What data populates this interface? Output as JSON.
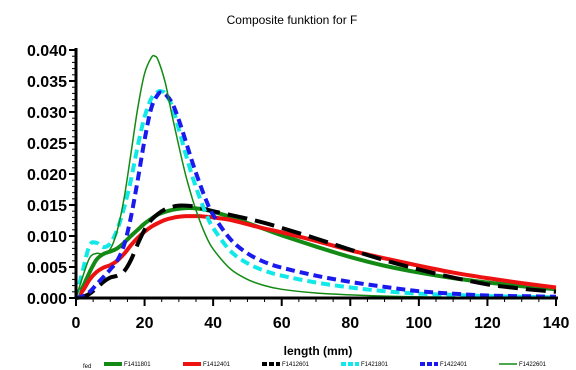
{
  "chart_data": {
    "type": "line",
    "title": "Composite funktion for F",
    "xlabel": "length (mm)",
    "ylabel": "",
    "xlim": [
      0,
      140
    ],
    "ylim": [
      0,
      0.04
    ],
    "x_ticks": [
      0,
      20,
      40,
      60,
      80,
      100,
      120,
      140
    ],
    "x_tick_labels": [
      "0",
      "20",
      "40",
      "60",
      "80",
      "100",
      "120",
      "140"
    ],
    "y_ticks": [
      0,
      0.005,
      0.01,
      0.015,
      0.02,
      0.025,
      0.03,
      0.035,
      0.04
    ],
    "y_tick_labels": [
      "0.000",
      "0.005",
      "0.010",
      "0.015",
      "0.020",
      "0.025",
      "0.030",
      "0.035",
      "0.040"
    ],
    "grid": false,
    "legend_position": "bottom",
    "legend_title": "fed",
    "series": [
      {
        "name": "F1411801",
        "color": "#138a13",
        "style": "solid",
        "weight": "thick",
        "x": [
          0,
          2,
          4,
          6,
          8,
          10,
          12,
          14,
          16,
          18,
          20,
          22,
          24,
          26,
          28,
          30,
          32,
          34,
          36,
          38,
          40,
          45,
          50,
          55,
          60,
          70,
          80,
          90,
          100,
          110,
          120,
          130,
          140
        ],
        "y": [
          0,
          0.0018,
          0.0042,
          0.0062,
          0.0071,
          0.0075,
          0.008,
          0.0089,
          0.01,
          0.011,
          0.012,
          0.0128,
          0.0135,
          0.0139,
          0.0142,
          0.0144,
          0.0145,
          0.0145,
          0.0144,
          0.0142,
          0.0139,
          0.0131,
          0.0121,
          0.0111,
          0.0101,
          0.0083,
          0.0066,
          0.0052,
          0.0041,
          0.0032,
          0.0025,
          0.0019,
          0.0014
        ]
      },
      {
        "name": "F1412401",
        "color": "#ee1111",
        "style": "solid",
        "weight": "thick",
        "x": [
          0,
          2,
          4,
          6,
          8,
          10,
          12,
          14,
          16,
          18,
          20,
          22,
          24,
          26,
          28,
          30,
          32,
          34,
          36,
          38,
          40,
          45,
          50,
          55,
          60,
          70,
          80,
          90,
          100,
          110,
          120,
          130,
          140
        ],
        "y": [
          0,
          0.0012,
          0.003,
          0.0042,
          0.0049,
          0.0053,
          0.006,
          0.0071,
          0.0085,
          0.0097,
          0.0107,
          0.0115,
          0.0121,
          0.0126,
          0.0129,
          0.0131,
          0.0132,
          0.0132,
          0.0132,
          0.0131,
          0.013,
          0.0126,
          0.0119,
          0.0112,
          0.0106,
          0.0092,
          0.0077,
          0.0064,
          0.0052,
          0.0041,
          0.0032,
          0.0024,
          0.0017
        ]
      },
      {
        "name": "F1412601",
        "color": "#000000",
        "style": "dashed-long",
        "weight": "thick",
        "x": [
          0,
          2,
          4,
          6,
          8,
          10,
          12,
          14,
          16,
          18,
          20,
          22,
          24,
          26,
          28,
          30,
          32,
          34,
          36,
          38,
          40,
          45,
          50,
          55,
          60,
          70,
          80,
          90,
          100,
          110,
          120,
          130,
          140
        ],
        "y": [
          0,
          0.0002,
          0.0007,
          0.0016,
          0.0026,
          0.0033,
          0.0036,
          0.0043,
          0.0061,
          0.0087,
          0.011,
          0.0126,
          0.0136,
          0.0143,
          0.0147,
          0.0149,
          0.0149,
          0.0148,
          0.0146,
          0.0143,
          0.014,
          0.0134,
          0.0128,
          0.0121,
          0.0113,
          0.0096,
          0.0078,
          0.0061,
          0.0046,
          0.0033,
          0.0022,
          0.0015,
          0.001
        ]
      },
      {
        "name": "F1421801",
        "color": "#11e8e8",
        "style": "dashed",
        "weight": "thick",
        "x": [
          0,
          2,
          4,
          6,
          8,
          10,
          12,
          14,
          16,
          18,
          20,
          22,
          24,
          25,
          26,
          28,
          30,
          32,
          34,
          36,
          38,
          40,
          45,
          50,
          55,
          60,
          70,
          80,
          90,
          100,
          110,
          120,
          130,
          140
        ],
        "y": [
          0,
          0.0045,
          0.0085,
          0.0089,
          0.0082,
          0.0088,
          0.011,
          0.0145,
          0.019,
          0.0245,
          0.0292,
          0.0322,
          0.0333,
          0.0333,
          0.033,
          0.031,
          0.0272,
          0.0232,
          0.0195,
          0.0163,
          0.0135,
          0.0113,
          0.0076,
          0.0056,
          0.0044,
          0.0036,
          0.0025,
          0.0017,
          0.0011,
          0.0007,
          0.0005,
          0.0003,
          0.0002,
          0.0001
        ]
      },
      {
        "name": "F1422401",
        "color": "#1a1aee",
        "style": "dashed",
        "weight": "thick",
        "x": [
          0,
          2,
          4,
          6,
          8,
          10,
          12,
          14,
          16,
          18,
          20,
          22,
          24,
          25,
          26,
          28,
          30,
          32,
          34,
          36,
          38,
          40,
          45,
          50,
          55,
          60,
          70,
          80,
          90,
          100,
          110,
          120,
          130,
          140
        ],
        "y": [
          0,
          0.0003,
          0.001,
          0.0022,
          0.0034,
          0.0046,
          0.006,
          0.0085,
          0.013,
          0.019,
          0.0255,
          0.0307,
          0.0329,
          0.0331,
          0.0329,
          0.0315,
          0.0287,
          0.0253,
          0.0218,
          0.0186,
          0.0157,
          0.0134,
          0.0095,
          0.0072,
          0.0058,
          0.0049,
          0.0036,
          0.0026,
          0.0018,
          0.0011,
          0.0007,
          0.0004,
          0.0003,
          0.0002
        ]
      },
      {
        "name": "F1422601",
        "color": "#138a13",
        "style": "solid",
        "weight": "thin",
        "x": [
          0,
          2,
          4,
          6,
          8,
          10,
          12,
          14,
          16,
          18,
          20,
          22,
          23,
          24,
          26,
          28,
          30,
          32,
          34,
          36,
          38,
          40,
          45,
          50,
          55,
          60,
          70,
          80,
          90,
          100,
          110,
          120,
          130,
          140
        ],
        "y": [
          0,
          0.0035,
          0.0065,
          0.0072,
          0.0071,
          0.0079,
          0.0108,
          0.016,
          0.0232,
          0.0306,
          0.0362,
          0.0388,
          0.039,
          0.0383,
          0.0348,
          0.0295,
          0.0245,
          0.0198,
          0.0159,
          0.0126,
          0.0099,
          0.0079,
          0.0047,
          0.003,
          0.002,
          0.0014,
          0.0008,
          0.0005,
          0.0003,
          0.0002,
          0.0001,
          0.0001,
          0.0,
          0.0
        ]
      }
    ]
  }
}
